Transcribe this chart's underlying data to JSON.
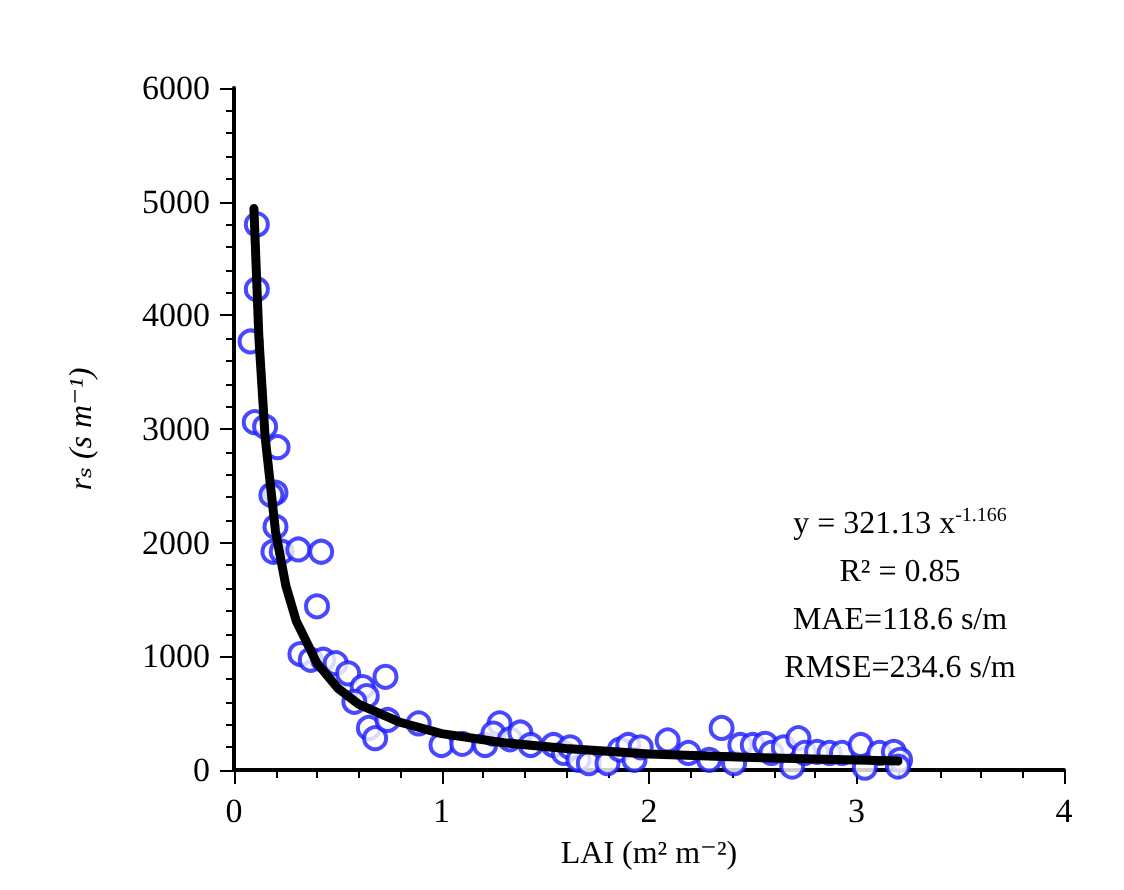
{
  "chart_data": {
    "type": "scatter",
    "xlabel": "LAI (m² m⁻²)",
    "ylabel": "rₛ (s m⁻¹)",
    "xlim": [
      0,
      4
    ],
    "xticks": [
      0,
      1,
      2,
      3,
      4
    ],
    "ylim": [
      0,
      6000
    ],
    "yticks": [
      0,
      1000,
      2000,
      3000,
      4000,
      5000,
      6000
    ],
    "grid": false,
    "annotations": [
      "y = 321.13 x$^{-1.166}$",
      "R² = 0.85",
      "MAE=118.6 s/m",
      "RMSE=234.6 s/m"
    ],
    "series": [
      {
        "color": "#1a1aff",
        "marker": "circle",
        "x": [
          0.11,
          0.11,
          0.08,
          0.1,
          0.15,
          0.21,
          0.2,
          0.18,
          0.2,
          0.19,
          0.23,
          0.31,
          0.42,
          0.4,
          0.32,
          0.37,
          0.43,
          0.49,
          0.55,
          0.62,
          0.64,
          0.58,
          0.73,
          0.65,
          0.68,
          0.74,
          0.89,
          1.0,
          1.1,
          1.21,
          1.28,
          1.25,
          1.33,
          1.38,
          1.43,
          1.54,
          1.59,
          1.62,
          1.66,
          1.71,
          1.8,
          1.86,
          1.9,
          1.93,
          1.96,
          2.09,
          2.19,
          2.29,
          2.35,
          2.41,
          2.44,
          2.5,
          2.56,
          2.59,
          2.65,
          2.69,
          2.72,
          2.75,
          2.81,
          2.87,
          2.93,
          3.02,
          3.04,
          3.11,
          3.18,
          3.21,
          3.2
        ],
        "values": [
          4800,
          4230,
          3770,
          3060,
          3020,
          2840,
          2440,
          2420,
          2140,
          1920,
          1920,
          1940,
          1920,
          1440,
          1020,
          970,
          970,
          940,
          850,
          730,
          650,
          600,
          820,
          370,
          280,
          440,
          410,
          220,
          230,
          220,
          410,
          320,
          270,
          330,
          220,
          220,
          150,
          200,
          90,
          60,
          60,
          180,
          220,
          90,
          200,
          260,
          150,
          90,
          370,
          60,
          220,
          220,
          230,
          150,
          200,
          30,
          280,
          150,
          160,
          150,
          150,
          220,
          20,
          150,
          160,
          90,
          30
        ]
      },
      {
        "type": "line",
        "color": "#000000",
        "marker": "none",
        "line_style": "solid",
        "x": [
          0.096,
          0.12,
          0.15,
          0.2,
          0.25,
          0.3,
          0.4,
          0.5,
          0.6,
          0.8,
          1.0,
          1.3,
          1.6,
          2.0,
          2.5,
          3.2
        ],
        "values": [
          4940,
          3800,
          2930,
          2100,
          1620,
          1310,
          940,
          720,
          580,
          420,
          320,
          240,
          190,
          140,
          110,
          80
        ]
      }
    ]
  }
}
